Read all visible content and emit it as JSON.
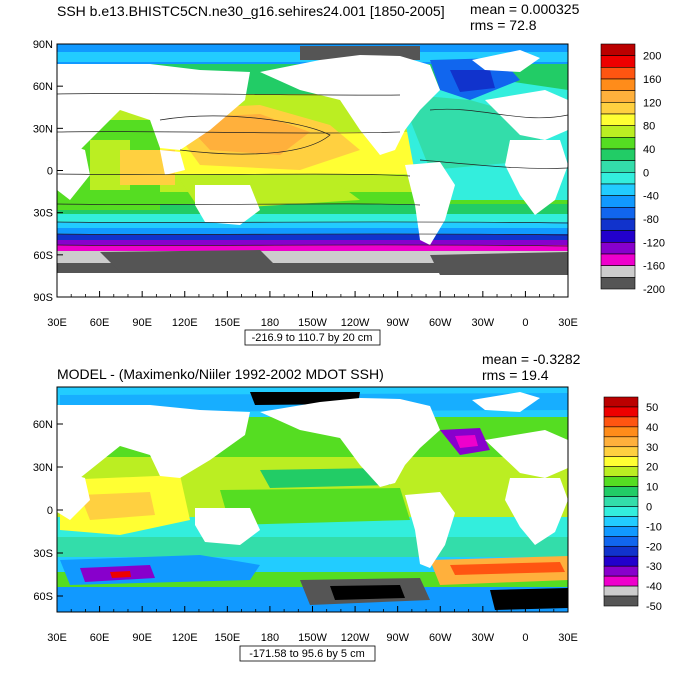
{
  "top": {
    "title": "SSH b.e13.BHISTC5CN.ne30_g16.sehires24.001 [1850-2005]",
    "mean": "mean = 0.000325",
    "rms": "rms = 72.8",
    "range_label": "-216.9 to 110.7 by 20 cm",
    "y_ticks": [
      "90N",
      "60N",
      "30N",
      "0",
      "30S",
      "60S",
      "90S"
    ],
    "colorbar_labels": [
      "200",
      "160",
      "120",
      "80",
      "40",
      "0",
      "-40",
      "-80",
      "-120",
      "-160",
      "-200"
    ]
  },
  "bottom": {
    "title": "MODEL - (Maximenko/Niiler 1992-2002 MDOT SSH)",
    "mean": "mean = -0.3282",
    "rms": "rms = 19.4",
    "range_label": "-171.58 to 95.6 by 5 cm",
    "y_ticks": [
      "60N",
      "30N",
      "0",
      "30S",
      "60S"
    ],
    "colorbar_labels": [
      "50",
      "40",
      "30",
      "20",
      "10",
      "0",
      "-10",
      "-20",
      "-30",
      "-40",
      "-50"
    ]
  },
  "x_ticks": [
    "30E",
    "60E",
    "90E",
    "120E",
    "150E",
    "180",
    "150W",
    "120W",
    "90W",
    "60W",
    "30W",
    "0",
    "30E"
  ],
  "colors": {
    "palette": [
      "#bb0000",
      "#ee0000",
      "#ff5511",
      "#ff8c1a",
      "#ffb03c",
      "#ffd040",
      "#ffff33",
      "#bbee22",
      "#55dd22",
      "#22cc66",
      "#33ddaa",
      "#33eedd",
      "#22ccff",
      "#1199ff",
      "#1166ee",
      "#1133cc",
      "#2200cc",
      "#8800cc",
      "#ee00cc",
      "#cccccc",
      "#555555"
    ],
    "land": "#ffffff"
  }
}
